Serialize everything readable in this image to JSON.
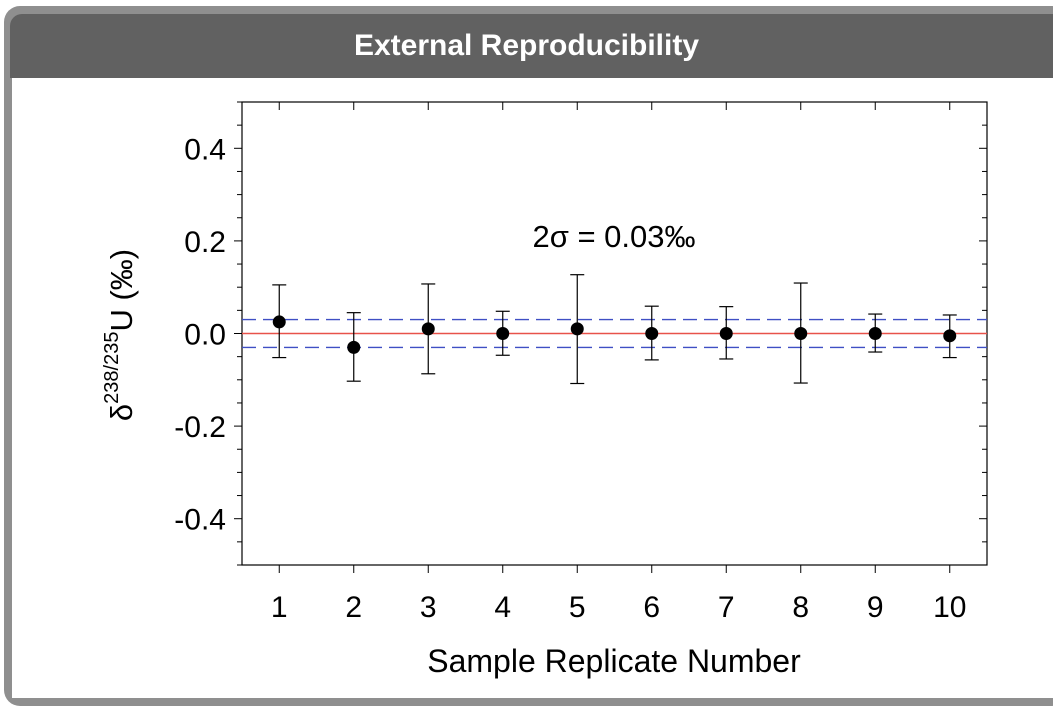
{
  "header": {
    "title": "External Reproducibility"
  },
  "chart_data": {
    "type": "scatter",
    "ylabel": {
      "base": "δ",
      "superscript": "238/235",
      "suffix": "U (‰)"
    },
    "xlabel": "Sample Replicate Number",
    "annotation": "2σ = 0.03‰",
    "x": [
      1,
      2,
      3,
      4,
      5,
      6,
      7,
      8,
      9,
      10
    ],
    "y": [
      0.025,
      -0.03,
      0.01,
      0.0,
      0.01,
      0.0,
      0.0,
      0.0,
      0.0,
      -0.005
    ],
    "y_err_upper": [
      0.105,
      0.045,
      0.107,
      0.048,
      0.127,
      0.059,
      0.058,
      0.109,
      0.042,
      0.04
    ],
    "y_err_lower": [
      -0.052,
      -0.103,
      -0.087,
      -0.047,
      -0.108,
      -0.057,
      -0.055,
      -0.107,
      -0.04,
      -0.052
    ],
    "mean_line": 0.0,
    "two_sigma_band": [
      -0.03,
      0.03
    ],
    "xlim": [
      0.5,
      10.5
    ],
    "ylim": [
      -0.5,
      0.5
    ],
    "x_ticks": [
      "1",
      "2",
      "3",
      "4",
      "5",
      "6",
      "7",
      "8",
      "9",
      "10"
    ],
    "y_ticks": [
      {
        "value": 0.4,
        "label": "0.4"
      },
      {
        "value": 0.2,
        "label": "0.2"
      },
      {
        "value": 0.0,
        "label": "0.0"
      },
      {
        "value": -0.2,
        "label": "-0.2"
      },
      {
        "value": -0.4,
        "label": "-0.4"
      }
    ],
    "colors": {
      "mean_line": "#e8524a",
      "band_line": "#3f4fc4",
      "points": "#000000"
    },
    "grid": false
  }
}
